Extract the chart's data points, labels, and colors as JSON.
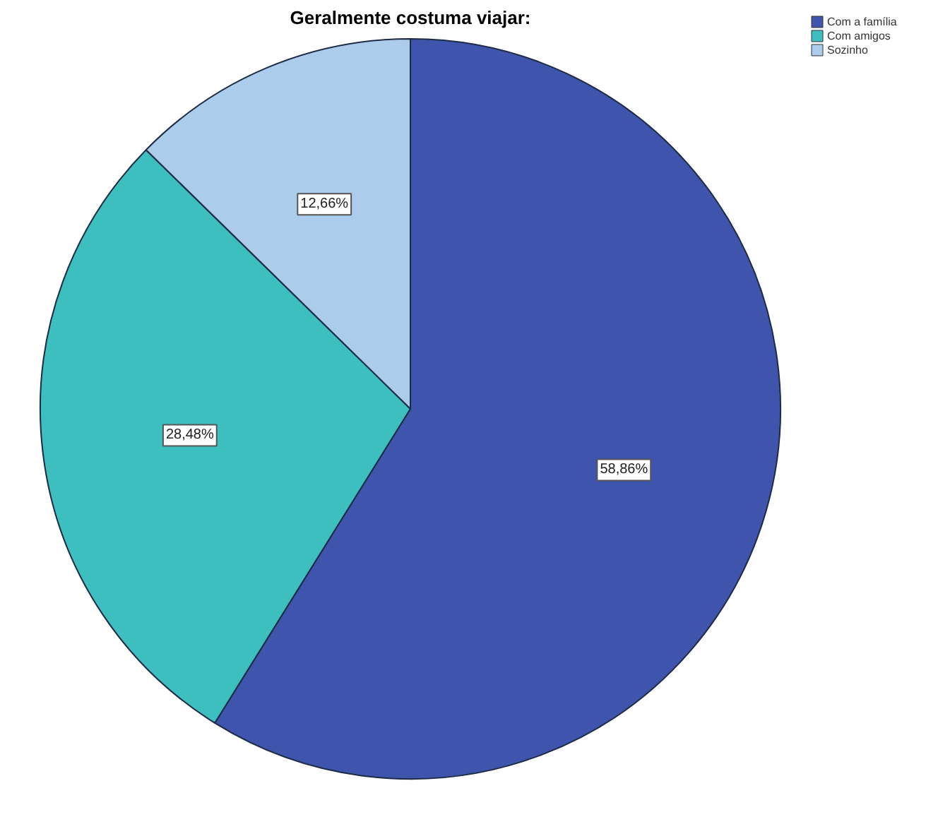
{
  "chart_data": {
    "type": "pie",
    "title": "Geralmente costuma viajar:",
    "categories": [
      "Com a família",
      "Com amigos",
      "Sozinho"
    ],
    "values": [
      58.86,
      28.48,
      12.66
    ],
    "colors": [
      "#3f55ad",
      "#3dbfbf",
      "#abcdeb"
    ],
    "value_labels": [
      "58,86%",
      "28,48%",
      "12,66%"
    ],
    "legend": "top right"
  }
}
